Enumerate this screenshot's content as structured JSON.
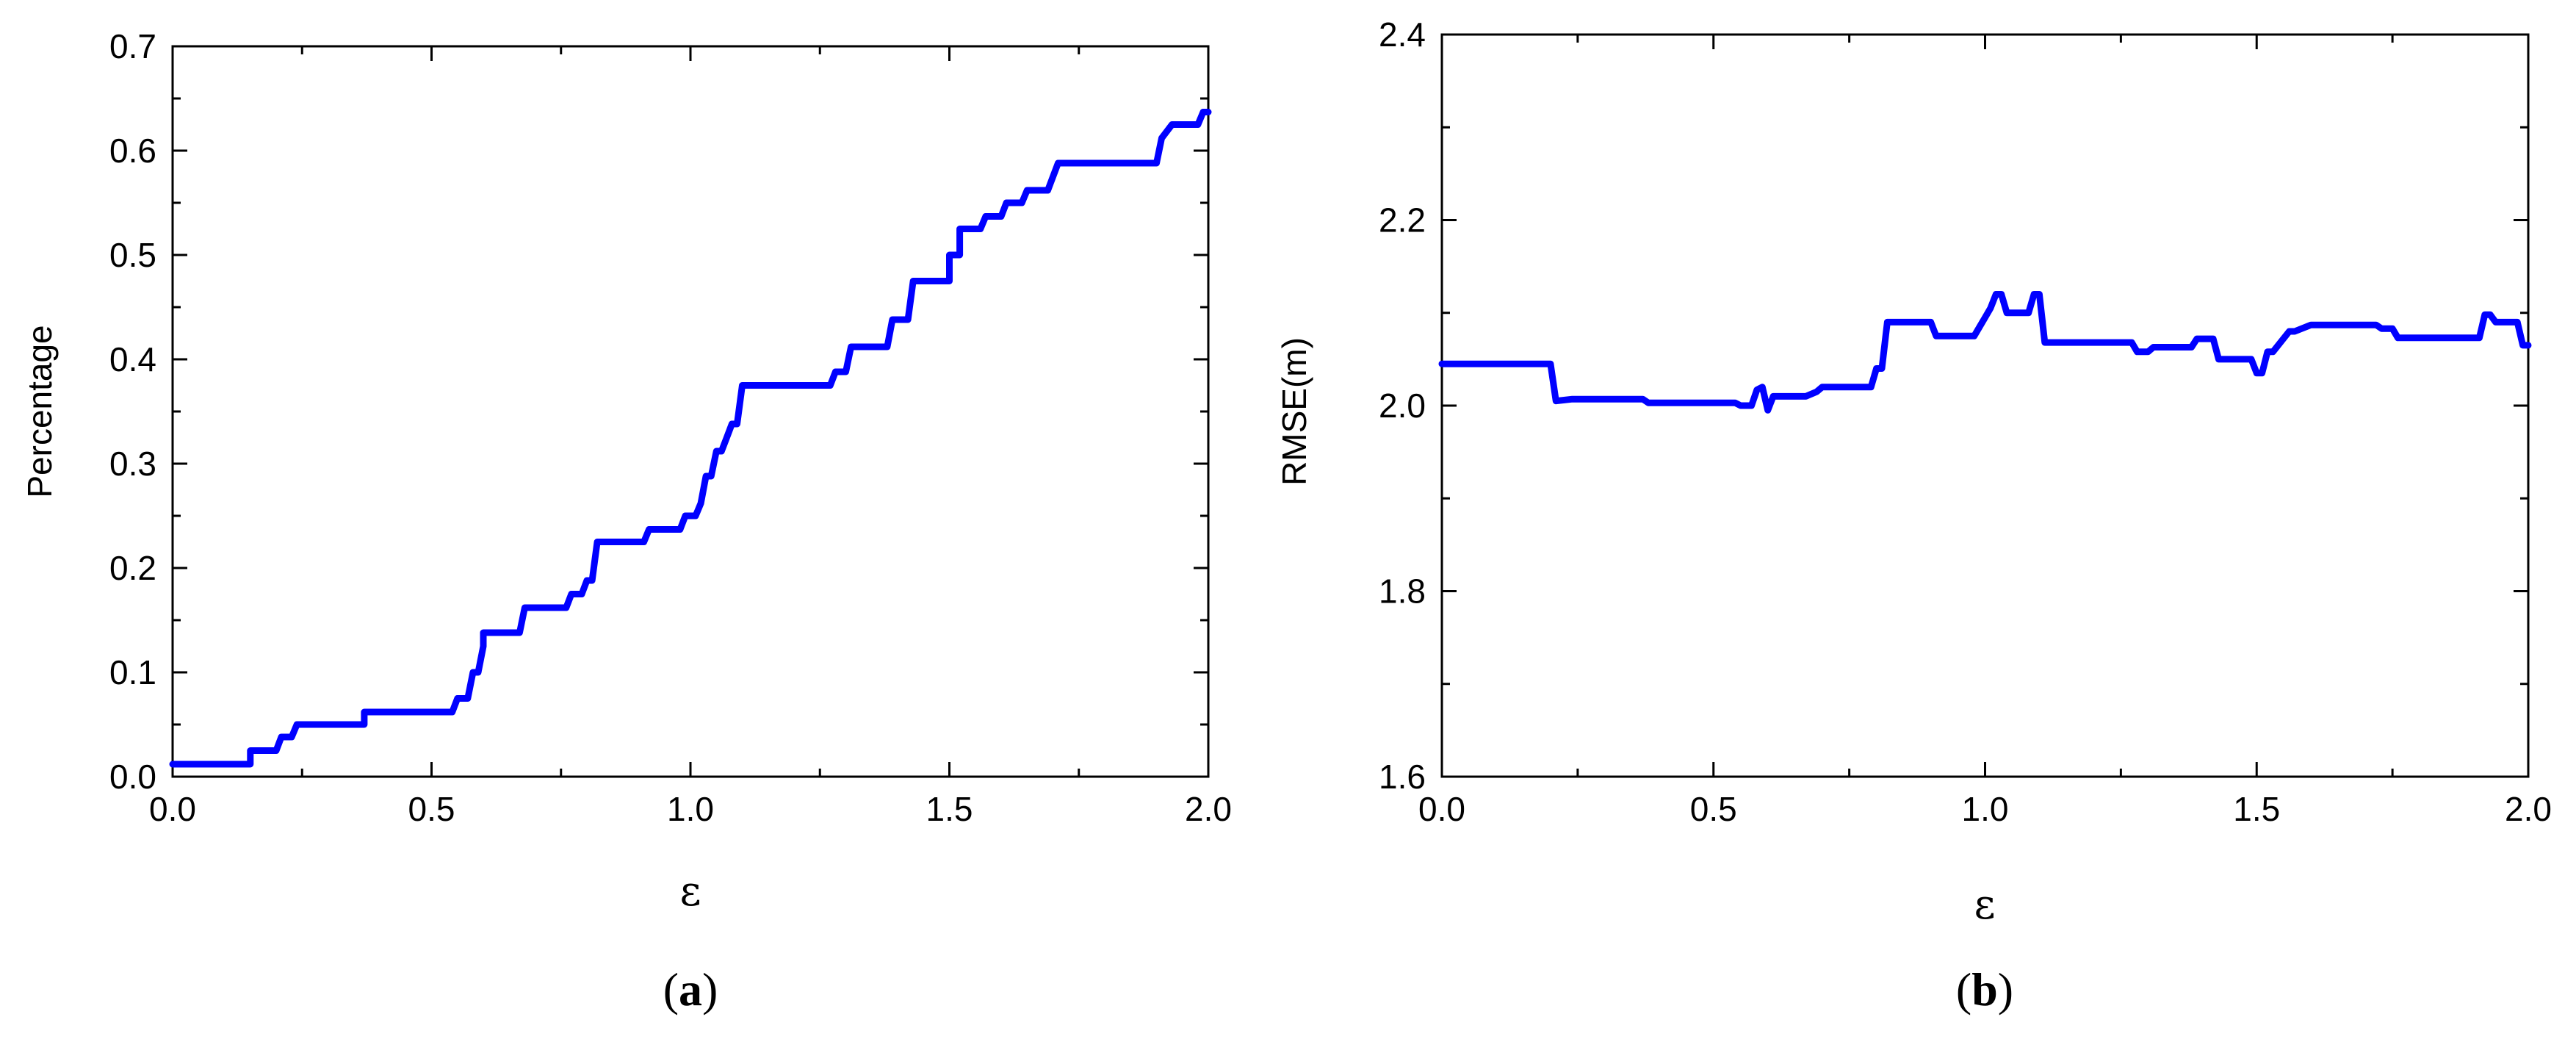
{
  "chart_data": [
    {
      "type": "line",
      "panel_label": "a",
      "xlabel": "ε",
      "ylabel": "Percentage",
      "xlim": [
        0.0,
        2.0
      ],
      "ylim": [
        0.0,
        0.7
      ],
      "xticks": [
        "0.0",
        "0.5",
        "1.0",
        "1.5",
        "2.0"
      ],
      "yticks": [
        "0.0",
        "0.1",
        "0.2",
        "0.3",
        "0.4",
        "0.5",
        "0.6",
        "0.7"
      ],
      "grid": false,
      "color": "#0000ff",
      "series": [
        {
          "x": [
            0.0,
            0.15,
            0.15,
            0.2,
            0.21,
            0.23,
            0.24,
            0.37,
            0.37,
            0.54,
            0.55,
            0.57,
            0.58,
            0.59,
            0.6,
            0.6,
            0.67,
            0.68,
            0.69,
            0.76,
            0.77,
            0.79,
            0.8,
            0.81,
            0.82,
            0.91,
            0.92,
            0.98,
            0.99,
            1.01,
            1.02,
            1.03,
            1.04,
            1.05,
            1.06,
            1.07,
            1.08,
            1.09,
            1.1,
            1.11,
            1.27,
            1.28,
            1.3,
            1.31,
            1.38,
            1.39,
            1.42,
            1.43,
            1.44,
            1.5,
            1.5,
            1.52,
            1.52,
            1.56,
            1.57,
            1.6,
            1.61,
            1.64,
            1.65,
            1.69,
            1.7,
            1.71,
            1.9,
            1.91,
            1.93,
            1.94,
            1.98,
            1.99,
            2.0
          ],
          "y": [
            0.012,
            0.012,
            0.025,
            0.025,
            0.038,
            0.038,
            0.05,
            0.05,
            0.062,
            0.062,
            0.075,
            0.075,
            0.1,
            0.1,
            0.125,
            0.138,
            0.138,
            0.162,
            0.162,
            0.162,
            0.175,
            0.175,
            0.188,
            0.188,
            0.225,
            0.225,
            0.237,
            0.237,
            0.25,
            0.25,
            0.262,
            0.288,
            0.288,
            0.312,
            0.312,
            0.325,
            0.338,
            0.338,
            0.375,
            0.375,
            0.375,
            0.388,
            0.388,
            0.412,
            0.412,
            0.438,
            0.438,
            0.475,
            0.475,
            0.475,
            0.5,
            0.5,
            0.525,
            0.525,
            0.537,
            0.537,
            0.55,
            0.55,
            0.562,
            0.562,
            0.575,
            0.588,
            0.588,
            0.612,
            0.625,
            0.625,
            0.625,
            0.637,
            0.637
          ]
        }
      ]
    },
    {
      "type": "line",
      "panel_label": "b",
      "xlabel": "ε",
      "ylabel": "RMSE(m)",
      "xlim": [
        0.0,
        2.0
      ],
      "ylim": [
        1.6,
        2.4
      ],
      "xticks": [
        "0.0",
        "0.5",
        "1.0",
        "1.5",
        "2.0"
      ],
      "yticks": [
        "1.6",
        "1.8",
        "2.0",
        "2.2",
        "2.4"
      ],
      "grid": false,
      "color": "#0000ff",
      "series": [
        {
          "x": [
            0.0,
            0.2,
            0.21,
            0.24,
            0.37,
            0.38,
            0.54,
            0.55,
            0.57,
            0.58,
            0.59,
            0.6,
            0.61,
            0.63,
            0.67,
            0.69,
            0.7,
            0.79,
            0.8,
            0.81,
            0.82,
            0.9,
            0.91,
            0.98,
            0.99,
            1.0,
            1.01,
            1.02,
            1.03,
            1.04,
            1.05,
            1.06,
            1.08,
            1.09,
            1.1,
            1.11,
            1.27,
            1.28,
            1.3,
            1.31,
            1.38,
            1.39,
            1.42,
            1.43,
            1.49,
            1.5,
            1.51,
            1.52,
            1.53,
            1.56,
            1.57,
            1.6,
            1.61,
            1.72,
            1.73,
            1.75,
            1.76,
            1.9,
            1.91,
            1.92,
            1.93,
            1.94,
            1.98,
            1.99,
            2.0
          ],
          "y": [
            2.045,
            2.045,
            2.005,
            2.007,
            2.007,
            2.003,
            2.003,
            2.0,
            2.0,
            2.017,
            2.02,
            1.995,
            2.01,
            2.01,
            2.01,
            2.015,
            2.02,
            2.02,
            2.04,
            2.04,
            2.09,
            2.09,
            2.075,
            2.075,
            2.085,
            2.095,
            2.105,
            2.12,
            2.12,
            2.1,
            2.1,
            2.1,
            2.1,
            2.12,
            2.12,
            2.068,
            2.068,
            2.058,
            2.058,
            2.063,
            2.063,
            2.072,
            2.072,
            2.05,
            2.05,
            2.035,
            2.035,
            2.058,
            2.058,
            2.08,
            2.08,
            2.087,
            2.087,
            2.087,
            2.083,
            2.083,
            2.073,
            2.073,
            2.073,
            2.098,
            2.098,
            2.09,
            2.09,
            2.065,
            2.065
          ]
        }
      ]
    }
  ]
}
